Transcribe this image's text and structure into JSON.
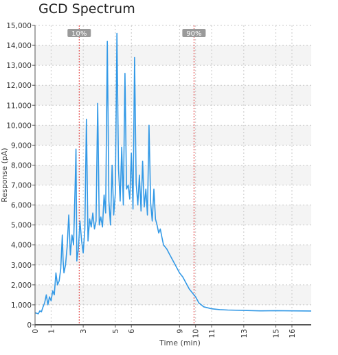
{
  "chart_data": {
    "type": "line",
    "title": "GCD Spectrum",
    "xlabel": "Time (min)",
    "ylabel": "Response (pA)",
    "xlim": [
      0,
      17.2
    ],
    "ylim": [
      0,
      15000
    ],
    "x_ticks": [
      0,
      1,
      3,
      5,
      6,
      9,
      10,
      11,
      13,
      15,
      16
    ],
    "y_ticks": [
      0,
      1000,
      2000,
      3000,
      4000,
      5000,
      6000,
      7000,
      8000,
      9000,
      10000,
      11000,
      12000,
      13000,
      14000,
      15000
    ],
    "y_tick_labels": [
      "0",
      "1,000",
      "2,000",
      "3,000",
      "4,000",
      "5,000",
      "6,000",
      "7,000",
      "8,000",
      "9,000",
      "10,000",
      "11,000",
      "12,000",
      "13,000",
      "14,000",
      "15,000"
    ],
    "grid": true,
    "markers": [
      {
        "label": "10%",
        "x": 2.75
      },
      {
        "label": "90%",
        "x": 9.9
      }
    ],
    "series": [
      {
        "color": "#3399e6",
        "x": [
          0.0,
          0.1,
          0.2,
          0.3,
          0.4,
          0.5,
          0.6,
          0.7,
          0.8,
          0.9,
          1.0,
          1.1,
          1.2,
          1.3,
          1.4,
          1.5,
          1.6,
          1.7,
          1.75,
          1.8,
          1.9,
          2.0,
          2.1,
          2.2,
          2.3,
          2.4,
          2.5,
          2.55,
          2.6,
          2.7,
          2.8,
          2.9,
          3.0,
          3.1,
          3.2,
          3.3,
          3.4,
          3.5,
          3.6,
          3.7,
          3.8,
          3.9,
          4.0,
          4.1,
          4.2,
          4.3,
          4.4,
          4.5,
          4.6,
          4.7,
          4.8,
          4.9,
          5.0,
          5.1,
          5.2,
          5.3,
          5.4,
          5.5,
          5.6,
          5.7,
          5.8,
          5.9,
          6.0,
          6.1,
          6.2,
          6.3,
          6.4,
          6.5,
          6.6,
          6.7,
          6.8,
          6.9,
          7.0,
          7.1,
          7.2,
          7.3,
          7.4,
          7.5,
          7.6,
          7.7,
          7.8,
          7.9,
          8.0,
          8.2,
          8.4,
          8.6,
          8.8,
          9.0,
          9.2,
          9.4,
          9.6,
          9.8,
          10.0,
          10.2,
          10.5,
          11.0,
          11.5,
          12.0,
          13.0,
          14.0,
          15.0,
          16.0,
          17.2
        ],
        "y": [
          600,
          580,
          550,
          700,
          650,
          900,
          1100,
          1500,
          1000,
          1400,
          1200,
          1700,
          1500,
          2600,
          2000,
          2200,
          2800,
          4500,
          3200,
          2600,
          3000,
          3900,
          5500,
          3500,
          4500,
          4000,
          7000,
          8800,
          3200,
          3800,
          5200,
          4200,
          3600,
          4800,
          10300,
          4200,
          5300,
          4900,
          5600,
          4800,
          5200,
          11100,
          5000,
          5400,
          4900,
          6500,
          5600,
          14200,
          6200,
          5000,
          8000,
          5500,
          6600,
          14600,
          7800,
          6200,
          8900,
          6000,
          12600,
          6800,
          7000,
          6300,
          8600,
          5800,
          13400,
          7100,
          6000,
          7500,
          5700,
          8200,
          5900,
          6800,
          5500,
          10000,
          6100,
          5200,
          6800,
          5300,
          5000,
          4600,
          4800,
          4400,
          4000,
          3800,
          3500,
          3200,
          2900,
          2600,
          2400,
          2100,
          1800,
          1600,
          1400,
          1100,
          900,
          800,
          760,
          740,
          720,
          700,
          710,
          700,
          690
        ]
      }
    ]
  }
}
